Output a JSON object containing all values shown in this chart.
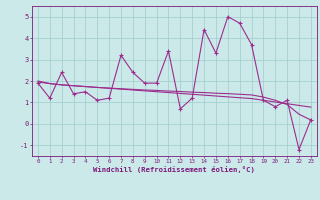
{
  "xlabel": "Windchill (Refroidissement éolien,°C)",
  "x_values": [
    0,
    1,
    2,
    3,
    4,
    5,
    6,
    7,
    8,
    9,
    10,
    11,
    12,
    13,
    14,
    15,
    16,
    17,
    18,
    19,
    20,
    21,
    22,
    23
  ],
  "y_scatter": [
    1.9,
    1.2,
    2.4,
    1.4,
    1.5,
    1.1,
    1.2,
    3.2,
    2.4,
    1.9,
    1.9,
    3.4,
    0.7,
    1.2,
    4.4,
    3.3,
    5.0,
    4.7,
    3.7,
    1.1,
    0.8,
    1.1,
    -1.2,
    0.2
  ],
  "y_regression1": [
    2.0,
    1.88,
    1.82,
    1.78,
    1.74,
    1.7,
    1.66,
    1.62,
    1.58,
    1.54,
    1.5,
    1.46,
    1.42,
    1.38,
    1.34,
    1.3,
    1.26,
    1.22,
    1.18,
    1.1,
    1.02,
    0.94,
    0.86,
    0.78
  ],
  "y_regression2": [
    1.95,
    1.88,
    1.82,
    1.78,
    1.74,
    1.7,
    1.67,
    1.64,
    1.61,
    1.58,
    1.56,
    1.53,
    1.51,
    1.48,
    1.46,
    1.43,
    1.41,
    1.38,
    1.35,
    1.25,
    1.1,
    0.9,
    0.45,
    0.18
  ],
  "line_color": "#9b2d8e",
  "bg_color": "#cce9e9",
  "grid_color": "#a0cccc",
  "axis_color": "#7b1a7b",
  "ylim": [
    -1.5,
    5.5
  ],
  "yticks": [
    -1,
    0,
    1,
    2,
    3,
    4,
    5
  ],
  "xlim": [
    -0.5,
    23.5
  ]
}
